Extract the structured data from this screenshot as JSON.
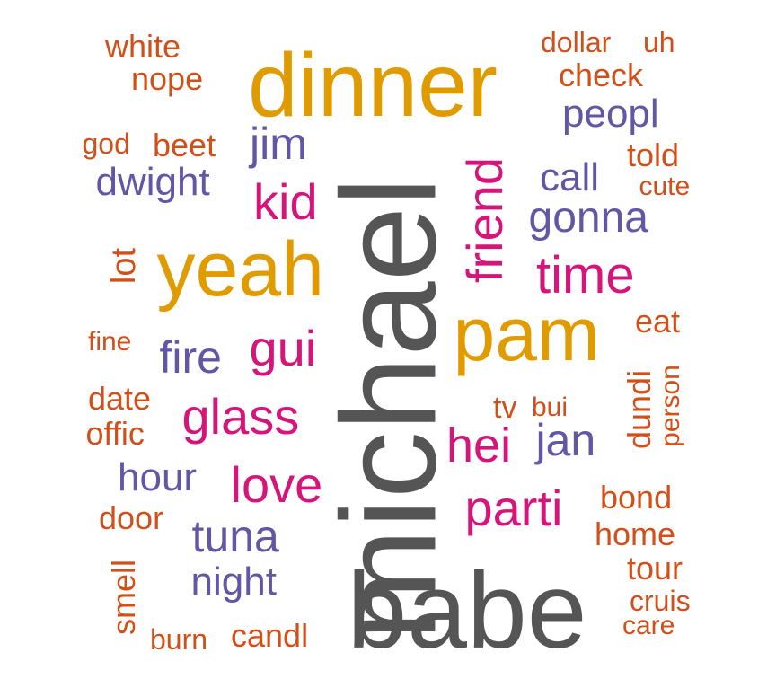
{
  "palette": {
    "gray": "#555555",
    "gold": "#e09b00",
    "magenta": "#d6157b",
    "purple": "#6356a4",
    "orange": "#d1501a"
  },
  "words": [
    {
      "text": "michael",
      "color": "gray"
    },
    {
      "text": "babe",
      "color": "gray"
    },
    {
      "text": "dinner",
      "color": "gold"
    },
    {
      "text": "yeah",
      "color": "gold"
    },
    {
      "text": "pam",
      "color": "gold"
    },
    {
      "text": "friend",
      "color": "magenta"
    },
    {
      "text": "time",
      "color": "magenta"
    },
    {
      "text": "kid",
      "color": "magenta"
    },
    {
      "text": "gui",
      "color": "magenta"
    },
    {
      "text": "glass",
      "color": "magenta"
    },
    {
      "text": "love",
      "color": "magenta"
    },
    {
      "text": "hei",
      "color": "magenta"
    },
    {
      "text": "parti",
      "color": "magenta"
    },
    {
      "text": "jim",
      "color": "purple"
    },
    {
      "text": "dwight",
      "color": "purple"
    },
    {
      "text": "peopl",
      "color": "purple"
    },
    {
      "text": "call",
      "color": "purple"
    },
    {
      "text": "gonna",
      "color": "purple"
    },
    {
      "text": "fire",
      "color": "purple"
    },
    {
      "text": "jan",
      "color": "purple"
    },
    {
      "text": "hour",
      "color": "purple"
    },
    {
      "text": "tuna",
      "color": "purple"
    },
    {
      "text": "night",
      "color": "purple"
    },
    {
      "text": "white",
      "color": "orange"
    },
    {
      "text": "nope",
      "color": "orange"
    },
    {
      "text": "dollar",
      "color": "orange"
    },
    {
      "text": "uh",
      "color": "orange"
    },
    {
      "text": "check",
      "color": "orange"
    },
    {
      "text": "god",
      "color": "orange"
    },
    {
      "text": "beet",
      "color": "orange"
    },
    {
      "text": "told",
      "color": "orange"
    },
    {
      "text": "cute",
      "color": "orange"
    },
    {
      "text": "lot",
      "color": "orange"
    },
    {
      "text": "fine",
      "color": "orange"
    },
    {
      "text": "eat",
      "color": "orange"
    },
    {
      "text": "dundi",
      "color": "orange"
    },
    {
      "text": "person",
      "color": "orange"
    },
    {
      "text": "date",
      "color": "orange"
    },
    {
      "text": "offic",
      "color": "orange"
    },
    {
      "text": "tv",
      "color": "orange"
    },
    {
      "text": "bui",
      "color": "orange"
    },
    {
      "text": "door",
      "color": "orange"
    },
    {
      "text": "bond",
      "color": "orange"
    },
    {
      "text": "home",
      "color": "orange"
    },
    {
      "text": "tour",
      "color": "orange"
    },
    {
      "text": "smell",
      "color": "orange"
    },
    {
      "text": "cruis",
      "color": "orange"
    },
    {
      "text": "care",
      "color": "orange"
    },
    {
      "text": "burn",
      "color": "orange"
    },
    {
      "text": "candl",
      "color": "orange"
    }
  ]
}
